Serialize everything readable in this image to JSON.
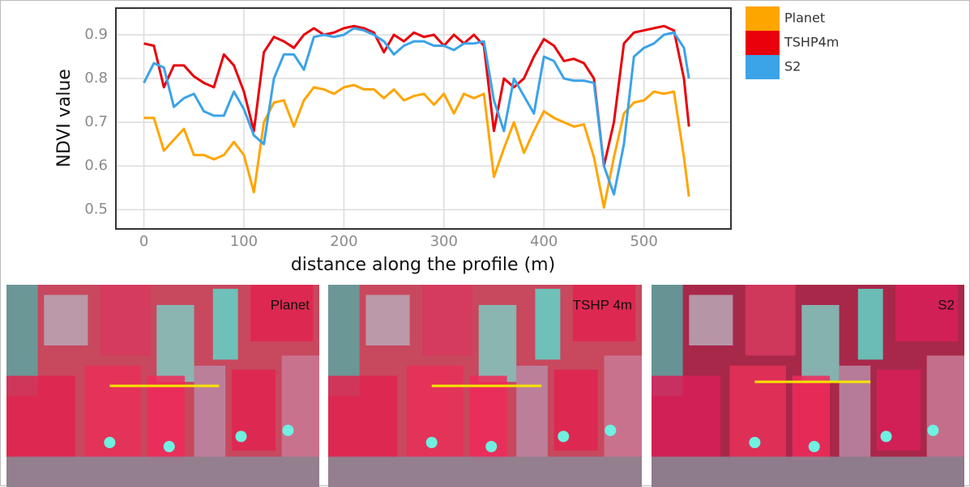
{
  "chart_data": {
    "type": "line",
    "ylabel": "NDVI value",
    "xlabel": "distance along the profile (m)",
    "xlim": [
      -28,
      587
    ],
    "xticks": [
      0,
      100,
      200,
      300,
      400,
      500
    ],
    "ylim": [
      0.456,
      0.961
    ],
    "yticks": [
      0.5,
      0.6,
      0.7,
      0.8,
      0.9
    ],
    "grid": true,
    "legend": "right",
    "x": [
      0,
      10,
      20,
      30,
      40,
      50,
      60,
      70,
      80,
      90,
      100,
      110,
      120,
      130,
      140,
      150,
      160,
      170,
      180,
      190,
      200,
      210,
      220,
      230,
      240,
      250,
      260,
      270,
      280,
      290,
      300,
      310,
      320,
      330,
      340,
      350,
      360,
      370,
      380,
      390,
      400,
      410,
      420,
      430,
      440,
      450,
      460,
      470,
      480,
      490,
      500,
      510,
      520,
      530,
      540,
      545
    ],
    "series": [
      {
        "name": "Planet",
        "color": "#ffa500",
        "values": [
          0.71,
          0.71,
          0.635,
          0.66,
          0.685,
          0.625,
          0.625,
          0.615,
          0.625,
          0.655,
          0.625,
          0.54,
          0.7,
          0.745,
          0.75,
          0.69,
          0.75,
          0.78,
          0.775,
          0.765,
          0.78,
          0.785,
          0.775,
          0.775,
          0.755,
          0.775,
          0.75,
          0.76,
          0.765,
          0.74,
          0.765,
          0.72,
          0.765,
          0.755,
          0.765,
          0.575,
          0.64,
          0.7,
          0.63,
          0.68,
          0.725,
          0.71,
          0.7,
          0.69,
          0.695,
          0.62,
          0.505,
          0.62,
          0.72,
          0.745,
          0.75,
          0.77,
          0.765,
          0.77,
          0.62,
          0.53
        ]
      },
      {
        "name": "TSHP4m",
        "color": "#e8000b",
        "values": [
          0.88,
          0.875,
          0.78,
          0.83,
          0.83,
          0.805,
          0.79,
          0.78,
          0.855,
          0.83,
          0.77,
          0.68,
          0.86,
          0.895,
          0.885,
          0.87,
          0.9,
          0.915,
          0.9,
          0.905,
          0.915,
          0.92,
          0.915,
          0.905,
          0.86,
          0.9,
          0.885,
          0.905,
          0.895,
          0.9,
          0.875,
          0.9,
          0.88,
          0.9,
          0.875,
          0.68,
          0.8,
          0.78,
          0.8,
          0.85,
          0.89,
          0.875,
          0.84,
          0.845,
          0.835,
          0.8,
          0.6,
          0.7,
          0.88,
          0.905,
          0.91,
          0.915,
          0.92,
          0.91,
          0.8,
          0.69
        ]
      },
      {
        "name": "S2",
        "color": "#3ba3e8",
        "values": [
          0.79,
          0.835,
          0.825,
          0.735,
          0.755,
          0.765,
          0.725,
          0.715,
          0.715,
          0.77,
          0.73,
          0.67,
          0.65,
          0.8,
          0.855,
          0.855,
          0.82,
          0.895,
          0.9,
          0.895,
          0.9,
          0.915,
          0.91,
          0.9,
          0.885,
          0.855,
          0.875,
          0.885,
          0.885,
          0.875,
          0.875,
          0.865,
          0.88,
          0.88,
          0.885,
          0.75,
          0.68,
          0.8,
          0.76,
          0.72,
          0.85,
          0.84,
          0.8,
          0.795,
          0.795,
          0.79,
          0.6,
          0.535,
          0.65,
          0.85,
          0.87,
          0.88,
          0.9,
          0.905,
          0.87,
          0.8
        ]
      }
    ]
  },
  "panels": [
    "Planet",
    "TSHP 4m",
    "S2"
  ]
}
